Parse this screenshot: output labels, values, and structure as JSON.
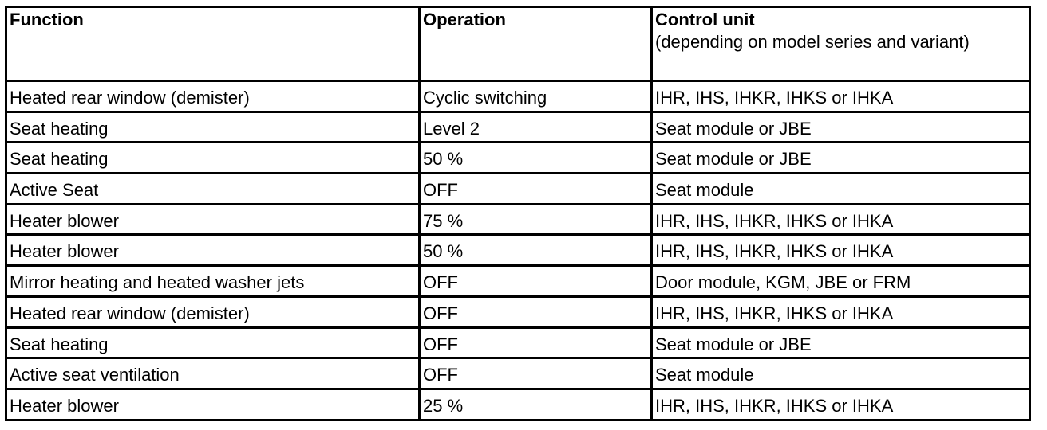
{
  "table": {
    "headers": {
      "function": "Function",
      "operation": "Operation",
      "control_unit": "Control unit",
      "control_unit_note": "(depending on model series and variant)"
    },
    "rows": [
      {
        "function": "Heated rear window (demister)",
        "operation": "Cyclic switching",
        "control_unit": "IHR, IHS, IHKR, IHKS or IHKA"
      },
      {
        "function": "Seat heating",
        "operation": "Level 2",
        "control_unit": "Seat module or JBE"
      },
      {
        "function": "Seat heating",
        "operation": "50 %",
        "control_unit": "Seat module or JBE"
      },
      {
        "function": "Active Seat",
        "operation": "OFF",
        "control_unit": "Seat module"
      },
      {
        "function": "Heater blower",
        "operation": "75 %",
        "control_unit": "IHR, IHS, IHKR, IHKS or IHKA"
      },
      {
        "function": "Heater blower",
        "operation": "50 %",
        "control_unit": "IHR, IHS, IHKR, IHKS or IHKA"
      },
      {
        "function": "Mirror heating and heated washer jets",
        "operation": "OFF",
        "control_unit": "Door module, KGM, JBE or FRM"
      },
      {
        "function": "Heated rear window (demister)",
        "operation": "OFF",
        "control_unit": "IHR, IHS, IHKR, IHKS or IHKA"
      },
      {
        "function": "Seat heating",
        "operation": "OFF",
        "control_unit": "Seat module or JBE"
      },
      {
        "function": "Active seat ventilation",
        "operation": "OFF",
        "control_unit": "Seat module"
      },
      {
        "function": "Heater blower",
        "operation": "25 %",
        "control_unit": "IHR, IHS, IHKR, IHKS or IHKA"
      }
    ]
  }
}
